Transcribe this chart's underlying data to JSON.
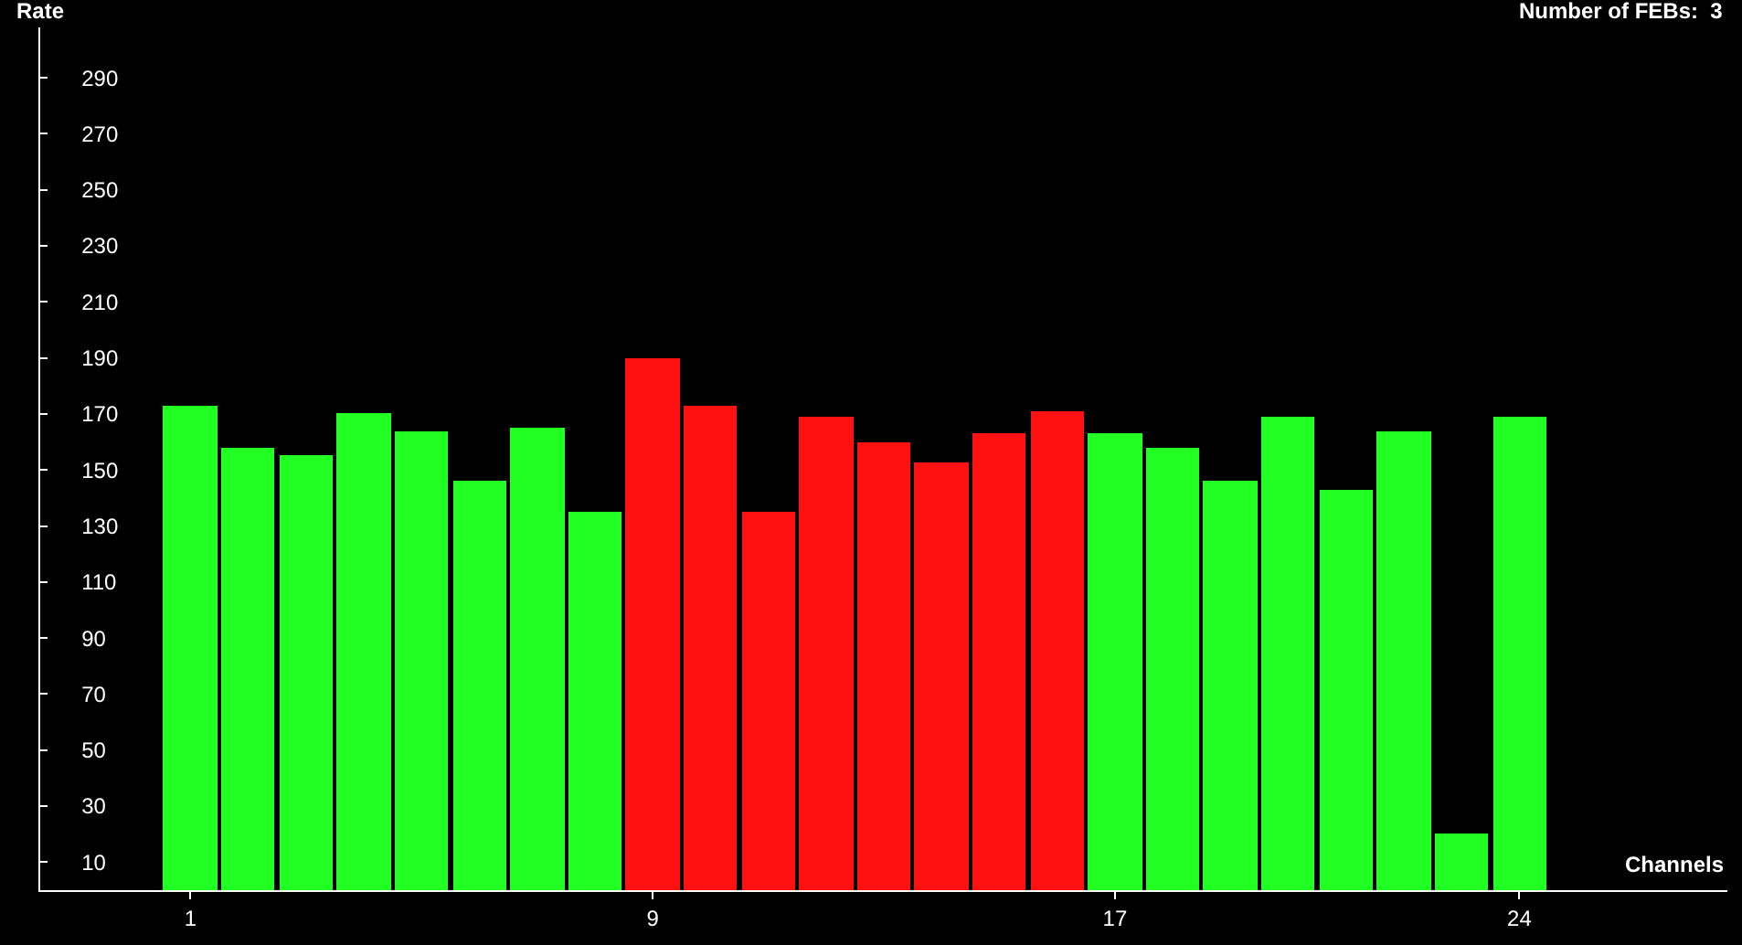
{
  "chart_data": {
    "type": "bar",
    "xlabel": "Channels",
    "ylabel": "Rate",
    "annotations": [
      "Number of FEBs:  3"
    ],
    "x": [
      1,
      2,
      3,
      4,
      5,
      6,
      7,
      8,
      9,
      10,
      11,
      12,
      13,
      14,
      15,
      16,
      17,
      18,
      19,
      20,
      21,
      22,
      23,
      24
    ],
    "values": [
      173,
      158,
      155,
      170,
      164,
      146,
      165,
      135,
      190,
      173,
      135,
      169,
      160,
      153,
      163,
      171,
      163,
      158,
      146,
      169,
      143,
      164,
      20,
      169
    ],
    "colors": [
      "#22ff22",
      "#22ff22",
      "#22ff22",
      "#22ff22",
      "#22ff22",
      "#22ff22",
      "#22ff22",
      "#22ff22",
      "#ff1111",
      "#ff1111",
      "#ff1111",
      "#ff1111",
      "#ff1111",
      "#ff1111",
      "#ff1111",
      "#ff1111",
      "#22ff22",
      "#22ff22",
      "#22ff22",
      "#22ff22",
      "#22ff22",
      "#22ff22",
      "#22ff22",
      "#22ff22"
    ],
    "xlim": [
      -1.6,
      27.6
    ],
    "xticks": [
      1,
      9,
      17,
      24
    ],
    "ylim": [
      0,
      308
    ],
    "yticks": [
      10,
      30,
      50,
      70,
      90,
      110,
      130,
      150,
      170,
      190,
      210,
      230,
      250,
      270,
      290
    ],
    "grid": false
  }
}
